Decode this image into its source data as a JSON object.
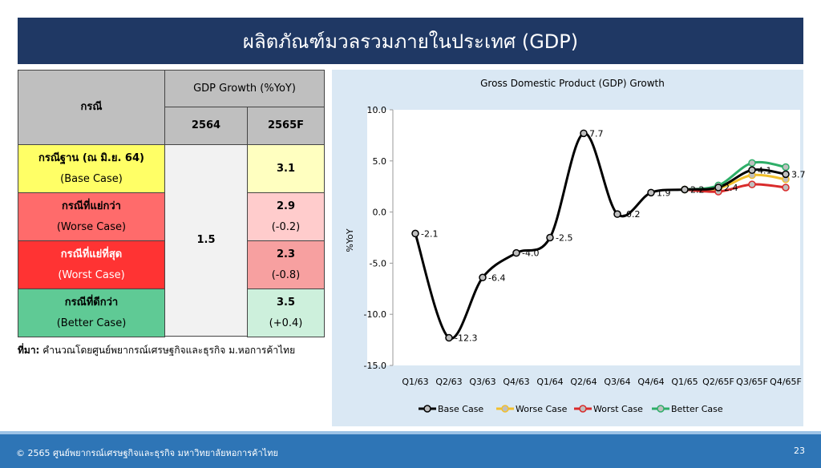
{
  "header": {
    "title": "ผลิตภัณฑ์มวลรวมภายในประเทศ (GDP)"
  },
  "table": {
    "head": [
      "กรณี",
      "GDP Growth (%YoY)",
      "2564",
      "2565F"
    ],
    "merged_2564": "1.5",
    "rows": [
      [
        "กรณีฐาน (ณ มิ.ย. 64)",
        "(Base Case)",
        "3.1",
        null
      ],
      [
        "กรณีที่แย่กว่า",
        "(Worse Case)",
        "2.9",
        "(-0.2)"
      ],
      [
        "กรณีที่แย่ที่สุด",
        "(Worst Case)",
        "2.3",
        "(-0.8)"
      ],
      [
        "กรณีที่ดีกว่า",
        "(Better Case)",
        "3.5",
        "(+0.4)"
      ]
    ],
    "note_label": "ที่มา:",
    "note": "คำนวณโดยศูนย์พยากรณ์เศรษฐกิจและธุรกิจ ม.หอการค้าไทย"
  },
  "chart_data": {
    "type": "line",
    "title": "Gross Domestic Product (GDP) Growth",
    "y_label": "%YoY",
    "categories": [
      "Q1/63",
      "Q2/63",
      "Q3/63",
      "Q4/63",
      "Q1/64",
      "Q2/64",
      "Q3/64",
      "Q4/64",
      "Q1/65",
      "Q2/65F",
      "Q3/65F",
      "Q4/65F"
    ],
    "ylim": [
      -15,
      10
    ],
    "yticks": [
      {
        "value": 10,
        "label": "10.0"
      },
      {
        "value": 5,
        "label": "5.0"
      },
      {
        "value": 0,
        "label": "0.0"
      },
      {
        "value": -5,
        "label": "-5.0"
      },
      {
        "value": -10,
        "label": "-10.0"
      },
      {
        "value": -15,
        "label": "-15.0"
      }
    ],
    "legend": "bottom",
    "series": [
      {
        "name": "Base Case",
        "color": "#000000",
        "values": [
          -2.1,
          -12.3,
          -6.4,
          -4.0,
          -2.5,
          7.7,
          -0.2,
          1.9,
          2.2,
          2.4,
          4.1,
          3.7
        ],
        "value_labels": [
          "-2.1",
          "-12.3",
          "-6.4",
          "-4.0",
          "-2.5",
          "7.7",
          "-0.2",
          "1.9",
          "2.2",
          "2.4",
          "4.1",
          "3.7"
        ]
      },
      {
        "name": "Worse Case",
        "color": "#f2bf2c",
        "values": [
          null,
          null,
          null,
          null,
          null,
          null,
          null,
          null,
          2.2,
          2.3,
          3.6,
          3.2
        ]
      },
      {
        "name": "Worst Case",
        "color": "#d92b2b",
        "values": [
          null,
          null,
          null,
          null,
          null,
          null,
          null,
          null,
          2.2,
          2.0,
          2.7,
          2.4
        ]
      },
      {
        "name": "Better Case",
        "color": "#2eae68",
        "values": [
          null,
          null,
          null,
          null,
          null,
          null,
          null,
          null,
          2.2,
          2.6,
          4.8,
          4.4
        ]
      }
    ]
  },
  "footer": {
    "text": "© 2565 ศูนย์พยากรณ์เศรษฐกิจและธุรกิจ มหาวิทยาลัยหอการค้าไทย",
    "page": "23"
  }
}
